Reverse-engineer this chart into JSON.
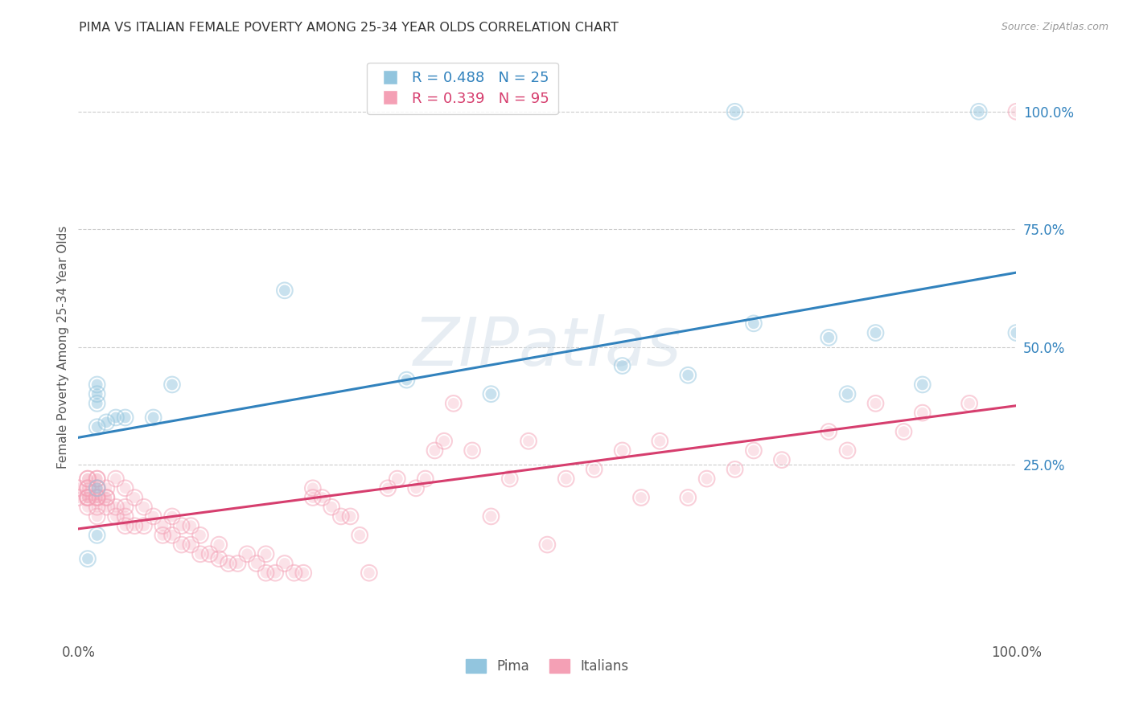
{
  "title": "PIMA VS ITALIAN FEMALE POVERTY AMONG 25-34 YEAR OLDS CORRELATION CHART",
  "source": "Source: ZipAtlas.com",
  "ylabel": "Female Poverty Among 25-34 Year Olds",
  "xlim": [
    0,
    1.0
  ],
  "ylim": [
    -0.12,
    1.12
  ],
  "pima_R": 0.488,
  "pima_N": 25,
  "italian_R": 0.339,
  "italian_N": 95,
  "pima_color": "#92c5de",
  "italian_color": "#f4a0b5",
  "trendline_pima_color": "#3182bd",
  "trendline_italian_color": "#d63e6e",
  "watermark_text": "ZIPatlas",
  "pima_x": [
    0.01,
    0.02,
    0.02,
    0.02,
    0.02,
    0.02,
    0.02,
    0.03,
    0.04,
    0.05,
    0.08,
    0.1,
    0.22,
    0.35,
    0.44,
    0.58,
    0.65,
    0.7,
    0.72,
    0.8,
    0.82,
    0.85,
    0.9,
    0.96,
    1.0
  ],
  "pima_y": [
    0.05,
    0.1,
    0.33,
    0.38,
    0.4,
    0.42,
    0.2,
    0.34,
    0.35,
    0.35,
    0.35,
    0.42,
    0.62,
    0.43,
    0.4,
    0.46,
    0.44,
    1.0,
    0.55,
    0.52,
    0.4,
    0.53,
    0.42,
    1.0,
    0.53
  ],
  "italian_x": [
    0.0,
    0.0,
    0.01,
    0.01,
    0.01,
    0.01,
    0.01,
    0.01,
    0.01,
    0.01,
    0.02,
    0.02,
    0.02,
    0.02,
    0.02,
    0.02,
    0.02,
    0.02,
    0.02,
    0.03,
    0.03,
    0.03,
    0.03,
    0.04,
    0.04,
    0.04,
    0.05,
    0.05,
    0.05,
    0.05,
    0.06,
    0.06,
    0.07,
    0.07,
    0.08,
    0.09,
    0.09,
    0.1,
    0.1,
    0.11,
    0.11,
    0.12,
    0.12,
    0.13,
    0.13,
    0.14,
    0.15,
    0.15,
    0.16,
    0.17,
    0.18,
    0.19,
    0.2,
    0.2,
    0.21,
    0.22,
    0.23,
    0.24,
    0.25,
    0.25,
    0.26,
    0.27,
    0.28,
    0.29,
    0.3,
    0.31,
    0.33,
    0.34,
    0.36,
    0.37,
    0.38,
    0.39,
    0.4,
    0.42,
    0.44,
    0.46,
    0.48,
    0.5,
    0.52,
    0.55,
    0.58,
    0.6,
    0.62,
    0.65,
    0.67,
    0.7,
    0.72,
    0.75,
    0.8,
    0.82,
    0.85,
    0.88,
    0.9,
    0.95,
    1.0
  ],
  "italian_y": [
    0.18,
    0.2,
    0.16,
    0.18,
    0.18,
    0.2,
    0.22,
    0.22,
    0.18,
    0.2,
    0.16,
    0.18,
    0.18,
    0.18,
    0.2,
    0.2,
    0.22,
    0.22,
    0.14,
    0.16,
    0.18,
    0.18,
    0.2,
    0.22,
    0.14,
    0.16,
    0.2,
    0.12,
    0.14,
    0.16,
    0.18,
    0.12,
    0.16,
    0.12,
    0.14,
    0.12,
    0.1,
    0.14,
    0.1,
    0.12,
    0.08,
    0.08,
    0.12,
    0.06,
    0.1,
    0.06,
    0.05,
    0.08,
    0.04,
    0.04,
    0.06,
    0.04,
    0.02,
    0.06,
    0.02,
    0.04,
    0.02,
    0.02,
    0.18,
    0.2,
    0.18,
    0.16,
    0.14,
    0.14,
    0.1,
    0.02,
    0.2,
    0.22,
    0.2,
    0.22,
    0.28,
    0.3,
    0.38,
    0.28,
    0.14,
    0.22,
    0.3,
    0.08,
    0.22,
    0.24,
    0.28,
    0.18,
    0.3,
    0.18,
    0.22,
    0.24,
    0.28,
    0.26,
    0.32,
    0.28,
    0.38,
    0.32,
    0.36,
    0.38,
    1.0
  ],
  "ytick_vals": [
    0.25,
    0.5,
    0.75,
    1.0
  ],
  "ytick_labels": [
    "25.0%",
    "50.0%",
    "75.0%",
    "100.0%"
  ],
  "xtick_vals": [
    0.0,
    1.0
  ],
  "xtick_labels": [
    "0.0%",
    "100.0%"
  ],
  "grid_vals": [
    0.25,
    0.5,
    0.75,
    1.0
  ],
  "background_color": "#ffffff",
  "grid_color": "#cccccc"
}
